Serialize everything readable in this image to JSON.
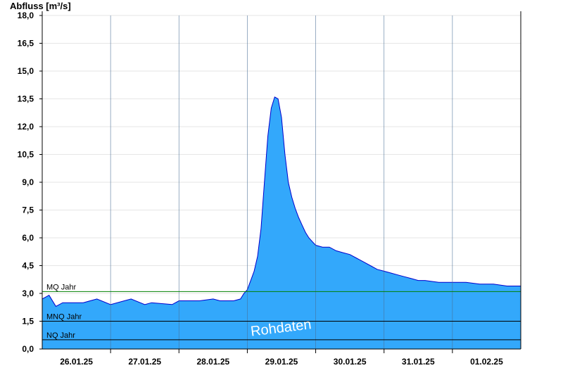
{
  "chart_data": {
    "type": "area",
    "ylabel": "Abfluss [m³/s]",
    "ylim": [
      0,
      18
    ],
    "yticks": [
      "0,0",
      "1,5",
      "3,0",
      "4,5",
      "6,0",
      "7,5",
      "9,0",
      "10,5",
      "12,0",
      "13,5",
      "15,0",
      "16,5",
      "18,0"
    ],
    "ytick_values": [
      0,
      1.5,
      3,
      4.5,
      6,
      7.5,
      9,
      10.5,
      12,
      13.5,
      15,
      16.5,
      18
    ],
    "xlim": [
      0,
      7
    ],
    "xticks": [
      "26.01.25",
      "27.01.25",
      "28.01.25",
      "29.01.25",
      "30.01.25",
      "31.01.25",
      "01.02.25"
    ],
    "xtick_positions": [
      0.5,
      1.5,
      2.5,
      3.5,
      4.5,
      5.5,
      6.5
    ],
    "x_day_boundaries": [
      1,
      2,
      3,
      4,
      5,
      6
    ],
    "grid": true,
    "fill_color": "#33a8fb",
    "line_color": "#0000cc",
    "series": [
      {
        "x": [
          0,
          0.1,
          0.2,
          0.3,
          0.4,
          0.5,
          0.6,
          0.8,
          1.0,
          1.2,
          1.3,
          1.5,
          1.6,
          1.9,
          2.0,
          2.2,
          2.3,
          2.5,
          2.6,
          2.8,
          2.9,
          2.95,
          3.0,
          3.05,
          3.1,
          3.15,
          3.2,
          3.25,
          3.3,
          3.35,
          3.4,
          3.45,
          3.5,
          3.55,
          3.6,
          3.65,
          3.7,
          3.75,
          3.8,
          3.85,
          3.9,
          3.95,
          4.0,
          4.1,
          4.2,
          4.3,
          4.4,
          4.5,
          4.6,
          4.7,
          4.8,
          4.9,
          5.0,
          5.1,
          5.2,
          5.3,
          5.4,
          5.5,
          5.6,
          5.8,
          6.0,
          6.2,
          6.4,
          6.6,
          6.8,
          7.0
        ],
        "y": [
          2.7,
          2.9,
          2.3,
          2.5,
          2.5,
          2.5,
          2.5,
          2.7,
          2.4,
          2.6,
          2.7,
          2.4,
          2.5,
          2.4,
          2.6,
          2.6,
          2.6,
          2.7,
          2.6,
          2.6,
          2.7,
          3.0,
          3.2,
          3.7,
          4.2,
          5.0,
          6.5,
          9.0,
          11.5,
          13.0,
          13.6,
          13.5,
          12.5,
          10.5,
          9.0,
          8.2,
          7.6,
          7.1,
          6.7,
          6.3,
          6.0,
          5.8,
          5.6,
          5.5,
          5.5,
          5.3,
          5.2,
          5.1,
          4.9,
          4.7,
          4.5,
          4.3,
          4.2,
          4.1,
          4.0,
          3.9,
          3.8,
          3.7,
          3.7,
          3.6,
          3.6,
          3.6,
          3.5,
          3.5,
          3.4,
          3.4
        ]
      }
    ],
    "reference_lines": [
      {
        "name": "MQ Jahr",
        "value": 3.1,
        "color": "#008000"
      },
      {
        "name": "MNQ Jahr",
        "value": 1.5,
        "color": "#000000"
      },
      {
        "name": "NQ Jahr",
        "value": 0.5,
        "color": "#000000"
      }
    ],
    "annotation": "Rohdaten"
  }
}
